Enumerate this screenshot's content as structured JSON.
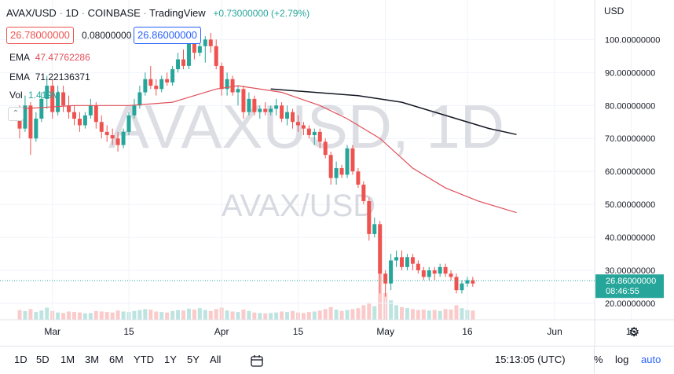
{
  "header": {
    "symbol": "AVAX/USD",
    "interval": "1D",
    "exchange": "COINBASE",
    "source": "TradingView",
    "change": "+0.73000000 (+2.79%)",
    "currency": "USD",
    "bid": "26.78000000",
    "spread": "0.08000000",
    "ask": "26.86000000"
  },
  "indicators": [
    {
      "label": "EMA",
      "value": "47.47762286",
      "color": "#e0505a"
    },
    {
      "label": "EMA",
      "value": "71.22136371",
      "color": "#131722"
    },
    {
      "label": "Vol",
      "value": "1.419M",
      "color": "#26a69a"
    }
  ],
  "watermark": {
    "big": "AVAXUSD, 1D",
    "small": "AVAX/USD"
  },
  "price_tag": {
    "price": "26.86000000",
    "countdown": "08:46:55"
  },
  "toolbar": {
    "ranges": [
      "1D",
      "5D",
      "1M",
      "3M",
      "6M",
      "YTD",
      "1Y",
      "5Y",
      "All"
    ],
    "time": "15:13:05 (UTC)",
    "percent": "%",
    "log": "log",
    "auto": "auto"
  },
  "colors": {
    "up": "#26a69a",
    "down": "#ef5350",
    "ema_fast": "#e0505a",
    "ema_slow": "#131722"
  },
  "chart_data": {
    "type": "candlestick",
    "ylim": [
      15,
      112
    ],
    "y_ticks": [
      "100.00000000",
      "90.00000000",
      "80.00000000",
      "70.00000000",
      "60.00000000",
      "50.00000000",
      "40.00000000",
      "30.00000000",
      "20.00000000"
    ],
    "y_tick_values": [
      100,
      90,
      80,
      70,
      60,
      50,
      40,
      30,
      20
    ],
    "x_ticks": [
      {
        "label": "Mar",
        "day": 6
      },
      {
        "label": "15",
        "day": 20
      },
      {
        "label": "Apr",
        "day": 37
      },
      {
        "label": "15",
        "day": 51
      },
      {
        "label": "May",
        "day": 67
      },
      {
        "label": "16",
        "day": 82
      },
      {
        "label": "Jun",
        "day": 98
      },
      {
        "label": "15",
        "day": 112
      }
    ],
    "first_date": "2022-02-24",
    "candles": [
      [
        78,
        80,
        70,
        73
      ],
      [
        73,
        83,
        72,
        80
      ],
      [
        80,
        81,
        65,
        70
      ],
      [
        70,
        78,
        69,
        76
      ],
      [
        76,
        84,
        75,
        82
      ],
      [
        82,
        89,
        79,
        86
      ],
      [
        86,
        88,
        76,
        78
      ],
      [
        78,
        86,
        77,
        84
      ],
      [
        84,
        86,
        78,
        80
      ],
      [
        80,
        83,
        76,
        78
      ],
      [
        78,
        80,
        74,
        76
      ],
      [
        76,
        78,
        72,
        74
      ],
      [
        74,
        78,
        73,
        77
      ],
      [
        77,
        82,
        76,
        80
      ],
      [
        80,
        81,
        73,
        75
      ],
      [
        75,
        77,
        70,
        72
      ],
      [
        72,
        74,
        69,
        71
      ],
      [
        71,
        73,
        68,
        70
      ],
      [
        70,
        72,
        66,
        68
      ],
      [
        68,
        73,
        67,
        72
      ],
      [
        72,
        78,
        71,
        77
      ],
      [
        77,
        82,
        76,
        80
      ],
      [
        80,
        86,
        79,
        84
      ],
      [
        84,
        90,
        83,
        88
      ],
      [
        88,
        92,
        85,
        86
      ],
      [
        86,
        88,
        83,
        85
      ],
      [
        85,
        89,
        84,
        88
      ],
      [
        88,
        90,
        86,
        87
      ],
      [
        87,
        92,
        86,
        91
      ],
      [
        91,
        96,
        90,
        94
      ],
      [
        94,
        97,
        91,
        92
      ],
      [
        92,
        101,
        91,
        99
      ],
      [
        99,
        102,
        94,
        96
      ],
      [
        96,
        104,
        95,
        98
      ],
      [
        98,
        101,
        93,
        100
      ],
      [
        100,
        102,
        96,
        98
      ],
      [
        98,
        100,
        91,
        92
      ],
      [
        92,
        93,
        83,
        85
      ],
      [
        85,
        90,
        83,
        88
      ],
      [
        88,
        89,
        83,
        84
      ],
      [
        84,
        86,
        80,
        85
      ],
      [
        85,
        86,
        76,
        78
      ],
      [
        78,
        84,
        77,
        82
      ],
      [
        82,
        83,
        77,
        78
      ],
      [
        78,
        80,
        76,
        79
      ],
      [
        79,
        81,
        77,
        78
      ],
      [
        78,
        80,
        77,
        79
      ],
      [
        79,
        82,
        77,
        80
      ],
      [
        80,
        81,
        75,
        76
      ],
      [
        76,
        80,
        74,
        78
      ],
      [
        78,
        79,
        73,
        75
      ],
      [
        75,
        77,
        72,
        74
      ],
      [
        74,
        75,
        71,
        73
      ],
      [
        73,
        74,
        70,
        71
      ],
      [
        71,
        73,
        68,
        72
      ],
      [
        72,
        73,
        67,
        69
      ],
      [
        69,
        70,
        64,
        65
      ],
      [
        65,
        66,
        56,
        58
      ],
      [
        58,
        63,
        56,
        61
      ],
      [
        61,
        62,
        58,
        59
      ],
      [
        59,
        68,
        58,
        67
      ],
      [
        67,
        68,
        59,
        60
      ],
      [
        60,
        61,
        55,
        56
      ],
      [
        56,
        57,
        50,
        51
      ],
      [
        51,
        52,
        39,
        41
      ],
      [
        41,
        46,
        40,
        44
      ],
      [
        44,
        45,
        23,
        29
      ],
      [
        29,
        30,
        22,
        26
      ],
      [
        26,
        35,
        24,
        33
      ],
      [
        33,
        36,
        31,
        34
      ],
      [
        34,
        36,
        30,
        31
      ],
      [
        31,
        35,
        30,
        34
      ],
      [
        34,
        35,
        30,
        32
      ],
      [
        32,
        33,
        29,
        30
      ],
      [
        30,
        31,
        27,
        28
      ],
      [
        28,
        31,
        27,
        30
      ],
      [
        30,
        31,
        27,
        29
      ],
      [
        29,
        32,
        28,
        31
      ],
      [
        31,
        32,
        28,
        29
      ],
      [
        29,
        30,
        27,
        28
      ],
      [
        28,
        29,
        23,
        24
      ],
      [
        24,
        27,
        23,
        26
      ],
      [
        26,
        28,
        25,
        27
      ],
      [
        27,
        28,
        25,
        26
      ]
    ],
    "volume": [
      20,
      18,
      22,
      16,
      19,
      25,
      18,
      15,
      14,
      17,
      16,
      15,
      13,
      14,
      18,
      17,
      16,
      15,
      19,
      17,
      16,
      18,
      20,
      22,
      21,
      17,
      16,
      15,
      18,
      20,
      19,
      23,
      21,
      24,
      20,
      18,
      22,
      25,
      19,
      17,
      16,
      21,
      18,
      15,
      14,
      13,
      14,
      15,
      17,
      16,
      18,
      15,
      14,
      16,
      17,
      19,
      22,
      26,
      21,
      18,
      20,
      22,
      24,
      30,
      35,
      28,
      100,
      55,
      40,
      30,
      26,
      24,
      22,
      20,
      21,
      19,
      20,
      18,
      22,
      21,
      30,
      24,
      20,
      19
    ],
    "ema_fast": [
      [
        0,
        79
      ],
      [
        10,
        80
      ],
      [
        20,
        80
      ],
      [
        28,
        81
      ],
      [
        32,
        83
      ],
      [
        36,
        85
      ],
      [
        40,
        86
      ],
      [
        48,
        84
      ],
      [
        55,
        80
      ],
      [
        60,
        76
      ],
      [
        66,
        70
      ],
      [
        72,
        61
      ],
      [
        78,
        55
      ],
      [
        84,
        51
      ],
      [
        88,
        49
      ],
      [
        91,
        47.5
      ]
    ],
    "ema_slow": [
      [
        46,
        85
      ],
      [
        54,
        84
      ],
      [
        62,
        83
      ],
      [
        70,
        81
      ],
      [
        78,
        77
      ],
      [
        86,
        73
      ],
      [
        91,
        71.2
      ]
    ]
  }
}
